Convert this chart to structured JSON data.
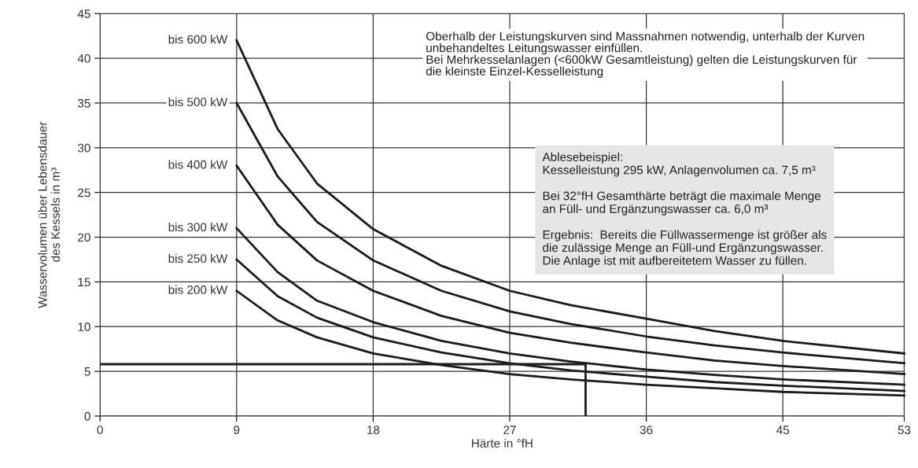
{
  "chart_data": {
    "type": "line",
    "xlabel": "Härte in °fH",
    "ylabel": "Wasservolumen über Lebensdauer\ndes Kessels in m³",
    "x": [
      9,
      11.7,
      14.3,
      18,
      22.5,
      27,
      31,
      36,
      40.5,
      45,
      53
    ],
    "series": [
      {
        "name": "bis 600 kW",
        "color": "#1a1a1a",
        "values": [
          42,
          32.1,
          26,
          20.9,
          16.8,
          14,
          12.4,
          10.9,
          9.5,
          8.4,
          7
        ]
      },
      {
        "name": "bis 500 kW",
        "color": "#1a1a1a",
        "values": [
          35,
          26.8,
          21.7,
          17.4,
          14,
          11.7,
          10.3,
          8.9,
          7.9,
          7.1,
          5.9
        ]
      },
      {
        "name": "bis 400 kW",
        "color": "#1a1a1a",
        "values": [
          28,
          21.4,
          17.4,
          14,
          11.2,
          9.3,
          8.2,
          7.1,
          6.2,
          5.6,
          4.7
        ]
      },
      {
        "name": "bis 300 kW",
        "color": "#1a1a1a",
        "values": [
          21,
          16.1,
          12.9,
          10.5,
          8.4,
          7.0,
          6.1,
          5.2,
          4.6,
          4.1,
          3.5
        ]
      },
      {
        "name": "bis 250 kW",
        "color": "#1a1a1a",
        "values": [
          17.5,
          13.4,
          11,
          8.8,
          7.1,
          5.9,
          5.1,
          4.4,
          3.8,
          3.4,
          2.8
        ]
      },
      {
        "name": "bis 200 kW",
        "color": "#1a1a1a",
        "values": [
          14,
          10.7,
          8.8,
          7,
          5.7,
          4.7,
          4.1,
          3.5,
          3.1,
          2.7,
          2.3
        ]
      }
    ],
    "ref_lines": [
      {
        "axis": "y",
        "value": 5.8,
        "color": "#1a1a1a"
      },
      {
        "axis": "x",
        "value": 32,
        "color": "#1a1a1a"
      }
    ],
    "annotations": [
      "Oberhalb der Leistungskurven sind Massnahmen notwendig, unterhalb der Kurven\nunbehandeltes Leitungswasser einfüllen.\nBei Mehrkesselanlagen (<600kW Gesamtleistung) gelten die Leistungskurven für\ndie kleinste Einzel-Kesselleistung",
      "Ablesebeispiel:\nKesselleistung 295 kW, Anlagenvolumen ca. 7,5 m³\n\nBei 32°fH Gesamthärte beträgt die maximale Menge\nan Füll- und Ergänzungswasser ca. 6,0 m³\n\nErgebnis:  Bereits die Füllwassermenge ist größer als\ndie zulässige Menge an Füll-und Ergänzungswasser.\nDie Anlage ist mit aufbereitetem Wasser zu füllen."
    ],
    "xlim": [
      0,
      53
    ],
    "ylim": [
      0,
      45
    ],
    "xticks": [
      0,
      9,
      18,
      27,
      36,
      45,
      53
    ],
    "yticks": [
      0,
      5,
      10,
      15,
      20,
      25,
      30,
      35,
      40,
      45
    ],
    "grid": true,
    "legend": false,
    "marker": "none",
    "line_style": "solid"
  }
}
